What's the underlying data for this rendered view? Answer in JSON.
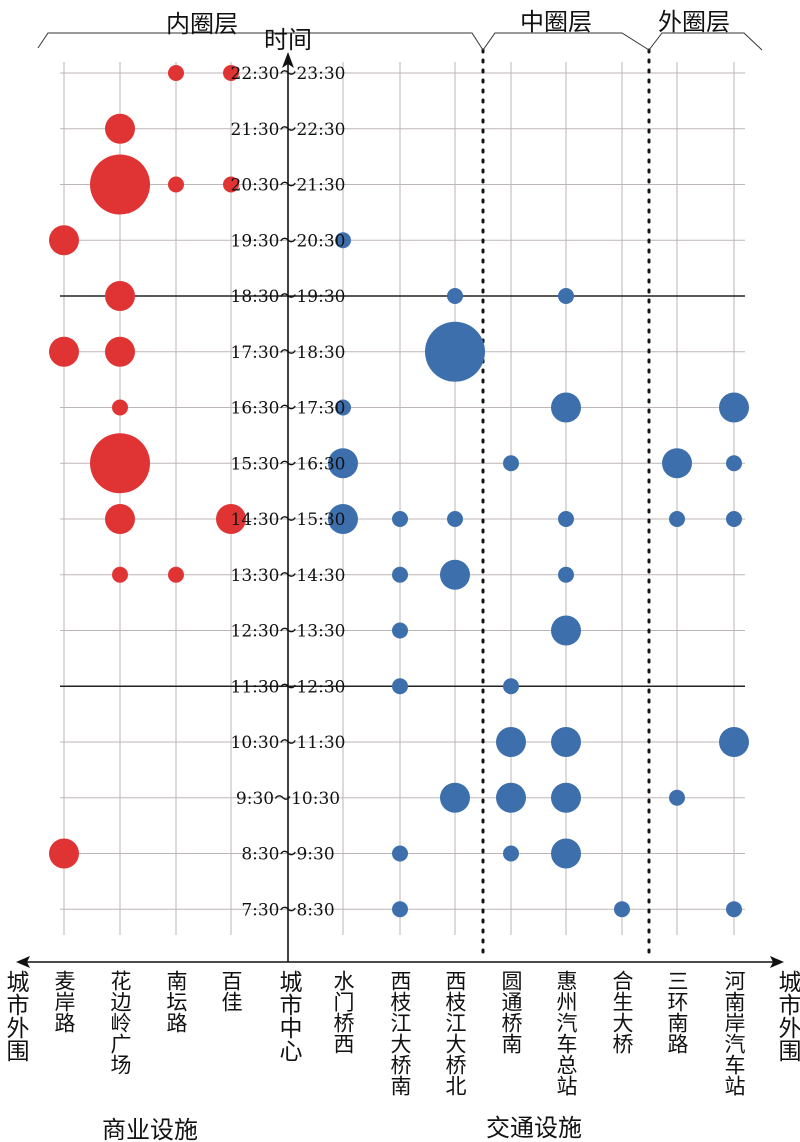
{
  "chart_data": {
    "type": "scatter",
    "subtype": "bubble",
    "ylabel": "时间",
    "x_left_label": "城市外围",
    "x_center_label": "城市中心",
    "x_right_label": "城市外围",
    "zones": [
      "内圈层",
      "中圈层",
      "外圈层"
    ],
    "groups": [
      "商业设施",
      "交通设施"
    ],
    "categories": [
      "麦岸路",
      "花边岭广场",
      "南坛路",
      "百佳",
      "水门桥西",
      "西枝江大桥南",
      "西枝江大桥北",
      "圆通桥南",
      "惠州汽车总站",
      "合生大桥",
      "三环南路",
      "河南岸汽车站"
    ],
    "category_group": [
      "commercial",
      "commercial",
      "commercial",
      "commercial",
      "transport",
      "transport",
      "transport",
      "transport",
      "transport",
      "transport",
      "transport",
      "transport"
    ],
    "times": [
      "22:30～23:30",
      "21:30～22:30",
      "20:30～21:30",
      "19:30～20:30",
      "18:30～19:30",
      "17:30～18:30",
      "16:30～17:30",
      "15:30～16:30",
      "14:30～15:30",
      "13:30～14:30",
      "12:30～13:30",
      "11:30～12:30",
      "10:30～11:30",
      "9:30～10:30",
      "8:30～9:30",
      "7:30～8:30"
    ],
    "emphasized_times": [
      "18:30～19:30",
      "11:30～12:30"
    ],
    "size_levels": "1=small,2=medium,3=large",
    "points": [
      [
        "南坛路",
        "22:30～23:30",
        1
      ],
      [
        "百佳",
        "22:30～23:30",
        1
      ],
      [
        "花边岭广场",
        "21:30～22:30",
        2
      ],
      [
        "花边岭广场",
        "20:30～21:30",
        3
      ],
      [
        "南坛路",
        "20:30～21:30",
        1
      ],
      [
        "百佳",
        "20:30～21:30",
        1
      ],
      [
        "麦岸路",
        "19:30～20:30",
        2
      ],
      [
        "水门桥西",
        "19:30～20:30",
        1
      ],
      [
        "花边岭广场",
        "18:30～19:30",
        2
      ],
      [
        "西枝江大桥北",
        "18:30～19:30",
        1
      ],
      [
        "惠州汽车总站",
        "18:30～19:30",
        1
      ],
      [
        "麦岸路",
        "17:30～18:30",
        2
      ],
      [
        "花边岭广场",
        "17:30～18:30",
        2
      ],
      [
        "西枝江大桥北",
        "17:30～18:30",
        3
      ],
      [
        "花边岭广场",
        "16:30～17:30",
        1
      ],
      [
        "水门桥西",
        "16:30～17:30",
        1
      ],
      [
        "惠州汽车总站",
        "16:30～17:30",
        2
      ],
      [
        "河南岸汽车站",
        "16:30～17:30",
        2
      ],
      [
        "花边岭广场",
        "15:30～16:30",
        3
      ],
      [
        "水门桥西",
        "15:30～16:30",
        2
      ],
      [
        "圆通桥南",
        "15:30～16:30",
        1
      ],
      [
        "三环南路",
        "15:30～16:30",
        2
      ],
      [
        "河南岸汽车站",
        "15:30～16:30",
        1
      ],
      [
        "花边岭广场",
        "14:30～15:30",
        2
      ],
      [
        "百佳",
        "14:30～15:30",
        2
      ],
      [
        "水门桥西",
        "14:30～15:30",
        2
      ],
      [
        "西枝江大桥南",
        "14:30～15:30",
        1
      ],
      [
        "西枝江大桥北",
        "14:30～15:30",
        1
      ],
      [
        "惠州汽车总站",
        "14:30～15:30",
        1
      ],
      [
        "三环南路",
        "14:30～15:30",
        1
      ],
      [
        "河南岸汽车站",
        "14:30～15:30",
        1
      ],
      [
        "花边岭广场",
        "13:30～14:30",
        1
      ],
      [
        "南坛路",
        "13:30～14:30",
        1
      ],
      [
        "西枝江大桥南",
        "13:30～14:30",
        1
      ],
      [
        "西枝江大桥北",
        "13:30～14:30",
        2
      ],
      [
        "惠州汽车总站",
        "13:30～14:30",
        1
      ],
      [
        "西枝江大桥南",
        "12:30～13:30",
        1
      ],
      [
        "惠州汽车总站",
        "12:30～13:30",
        2
      ],
      [
        "西枝江大桥南",
        "11:30～12:30",
        1
      ],
      [
        "圆通桥南",
        "11:30～12:30",
        1
      ],
      [
        "圆通桥南",
        "10:30～11:30",
        2
      ],
      [
        "惠州汽车总站",
        "10:30～11:30",
        2
      ],
      [
        "河南岸汽车站",
        "10:30～11:30",
        2
      ],
      [
        "西枝江大桥北",
        "9:30～10:30",
        2
      ],
      [
        "圆通桥南",
        "9:30～10:30",
        2
      ],
      [
        "惠州汽车总站",
        "9:30～10:30",
        2
      ],
      [
        "三环南路",
        "9:30～10:30",
        1
      ],
      [
        "麦岸路",
        "8:30～9:30",
        2
      ],
      [
        "西枝江大桥南",
        "8:30～9:30",
        1
      ],
      [
        "圆通桥南",
        "8:30～9:30",
        1
      ],
      [
        "惠州汽车总站",
        "8:30～9:30",
        2
      ],
      [
        "西枝江大桥南",
        "7:30～8:30",
        1
      ],
      [
        "合生大桥",
        "7:30～8:30",
        1
      ],
      [
        "河南岸汽车站",
        "7:30～8:30",
        1
      ]
    ],
    "colors": {
      "commercial": "#e03434",
      "transport": "#3d6fad",
      "grid": "#bdb6b6",
      "axis": "#111111"
    }
  }
}
